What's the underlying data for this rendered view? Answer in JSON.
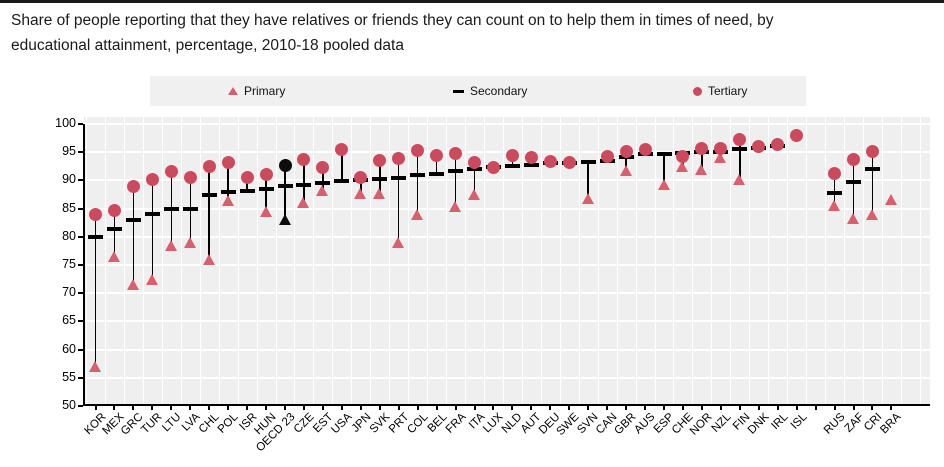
{
  "title": {
    "line1": "Share of people reporting that they have relatives or friends they can count on to help them in times of need, by",
    "line2": "educational attainment, percentage, 2010-18 pooled data"
  },
  "legend": {
    "items": [
      {
        "label": "Primary",
        "marker": "triangle"
      },
      {
        "label": "Secondary",
        "marker": "dash"
      },
      {
        "label": "Tertiary",
        "marker": "circle"
      }
    ]
  },
  "colors": {
    "primary_marker": "#d5606e",
    "secondary_marker": "#000000",
    "tertiary_marker": "#cb4b5e",
    "highlight_marker": "#0d0d0d",
    "plot_bg": "#f0eff0",
    "legend_bg": "#f1f0f1",
    "gridline": "#ffffff",
    "axis": "#000000",
    "title_text": "#1a1a1a"
  },
  "chart_data": {
    "type": "scatter",
    "title": "Share of people reporting that they have relatives or friends they can count on to help them in times of need, by educational attainment, percentage, 2010-18 pooled data",
    "xlabel": "",
    "ylabel": "",
    "ylim": [
      50,
      100
    ],
    "ytick_step": 5,
    "grid": true,
    "legend_position": "top",
    "highlight_category": "OECD 23",
    "categories": [
      "KOR",
      "MEX",
      "GRC",
      "TUR",
      "LTU",
      "LVA",
      "CHL",
      "POL",
      "ISR",
      "HUN",
      "OECD 23",
      "CZE",
      "EST",
      "USA",
      "JPN",
      "SVK",
      "PRT",
      "COL",
      "BEL",
      "FRA",
      "ITA",
      "LUX",
      "NLD",
      "AUT",
      "DEU",
      "SWE",
      "SVN",
      "CAN",
      "GBR",
      "AUS",
      "ESP",
      "CHE",
      "NOR",
      "NZL",
      "FIN",
      "DNK",
      "IRL",
      "ISL",
      "",
      "RUS",
      "ZAF",
      "CRI",
      "BRA"
    ],
    "series": [
      {
        "name": "Primary",
        "marker": "triangle",
        "values": [
          57,
          76.5,
          71.5,
          72.5,
          78.5,
          79,
          76,
          86.4,
          null,
          84.4,
          83.1,
          86.1,
          88.2,
          null,
          87.6,
          87.6,
          79,
          84,
          null,
          85.4,
          87.5,
          null,
          null,
          null,
          null,
          null,
          86.8,
          null,
          91.7,
          null,
          89.3,
          92.4,
          92,
          94,
          90.1,
          null,
          null,
          null,
          null,
          85.5,
          83.2,
          84,
          86.7
        ]
      },
      {
        "name": "Secondary",
        "marker": "dash",
        "values": [
          80,
          81.4,
          83,
          84,
          84.9,
          85,
          87.4,
          87.9,
          88.1,
          88.4,
          89,
          89.2,
          89.6,
          89.9,
          90,
          90.2,
          90.5,
          91,
          91.2,
          91.6,
          92,
          92.3,
          92.6,
          92.8,
          93,
          93.1,
          93.2,
          93.5,
          94.2,
          94.6,
          94.7,
          94.8,
          95,
          95.1,
          95.6,
          95.8,
          96.1,
          null,
          null,
          87.8,
          89.7,
          92,
          null
        ]
      },
      {
        "name": "Tertiary",
        "marker": "circle",
        "values": [
          84,
          84.6,
          89,
          90.1,
          91.5,
          90.5,
          92.4,
          93.1,
          90.5,
          91,
          92.7,
          93.7,
          92.2,
          95.4,
          90.6,
          93.6,
          93.8,
          95.3,
          94.4,
          94.7,
          93.1,
          92.2,
          94.4,
          94,
          93.4,
          93.2,
          null,
          94.2,
          95.2,
          95.5,
          null,
          94.3,
          95.7,
          95.7,
          97.3,
          96,
          96.4,
          98,
          null,
          91.2,
          93.7,
          95.2,
          null
        ]
      }
    ]
  }
}
